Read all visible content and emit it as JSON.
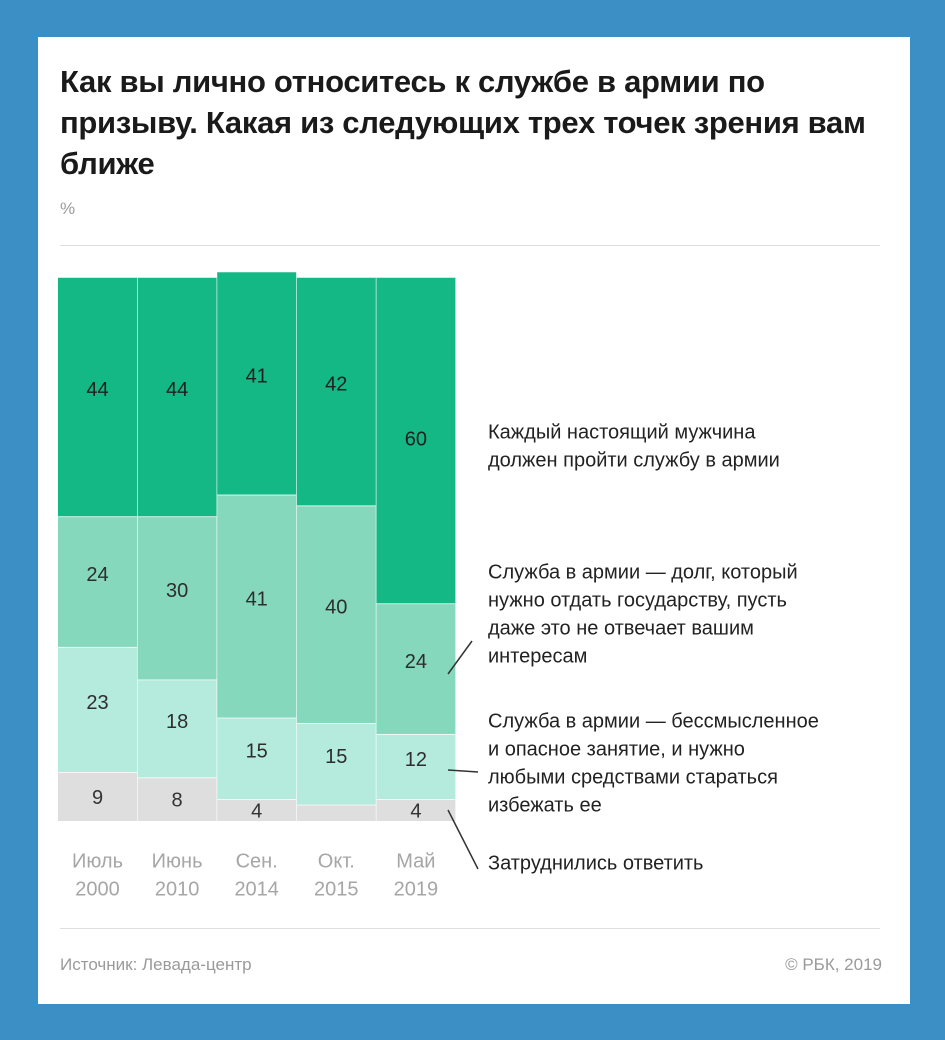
{
  "header": {
    "title": "Как вы лично относитесь к службе в армии по призыву. Какая из следующих трех точек зрения вам ближе",
    "unit": "%"
  },
  "footer": {
    "source": "Источник: Левада-центр",
    "copyright": "© РБК, 2019"
  },
  "colors": {
    "frame": "#3b8fc4",
    "s1": "#14b884",
    "s2": "#86d8bd",
    "s3": "#b5ebdd",
    "s4": "#dedede"
  },
  "chart_data": {
    "type": "bar",
    "stacked": true,
    "ylim": [
      0,
      100
    ],
    "categories": [
      [
        "Июль",
        "2000"
      ],
      [
        "Июнь",
        "2010"
      ],
      [
        "Сен.",
        "2014"
      ],
      [
        "Окт.",
        "2015"
      ],
      [
        "Май",
        "2019"
      ]
    ],
    "series": [
      {
        "name": "Затруднились ответить",
        "values": [
          9,
          8,
          4,
          3,
          4
        ],
        "labels": [
          "9",
          "8",
          "4",
          "",
          "4"
        ]
      },
      {
        "name": "Служба в армии — бессмысленное и опасное занятие, и нужно любыми средствами стараться избежать ее",
        "values": [
          23,
          18,
          15,
          15,
          12
        ],
        "labels": [
          "23",
          "18",
          "15",
          "15",
          "12"
        ]
      },
      {
        "name": "Служба в армии — долг, который нужно отдать государству, пусть даже это не отвечает вашим интересам",
        "values": [
          24,
          30,
          41,
          40,
          24
        ],
        "labels": [
          "24",
          "30",
          "41",
          "40",
          "24"
        ]
      },
      {
        "name": "Каждый настоящий мужчина должен пройти службу в армии",
        "values": [
          44,
          44,
          41,
          42,
          60
        ],
        "labels": [
          "44",
          "44",
          "41",
          "42",
          "60"
        ]
      }
    ],
    "legend_lines": [
      [
        "Затруднились ответить"
      ],
      [
        "Служба в армии — бессмысленное",
        "и опасное занятие, и нужно",
        "любыми средствами стараться",
        "избежать ее"
      ],
      [
        "Служба в армии — долг, который",
        "нужно отдать государству, пусть",
        "даже это не отвечает вашим",
        "интересам"
      ],
      [
        "Каждый настоящий мужчина",
        "должен пройти службу в армии"
      ]
    ],
    "legend_position": "right"
  }
}
